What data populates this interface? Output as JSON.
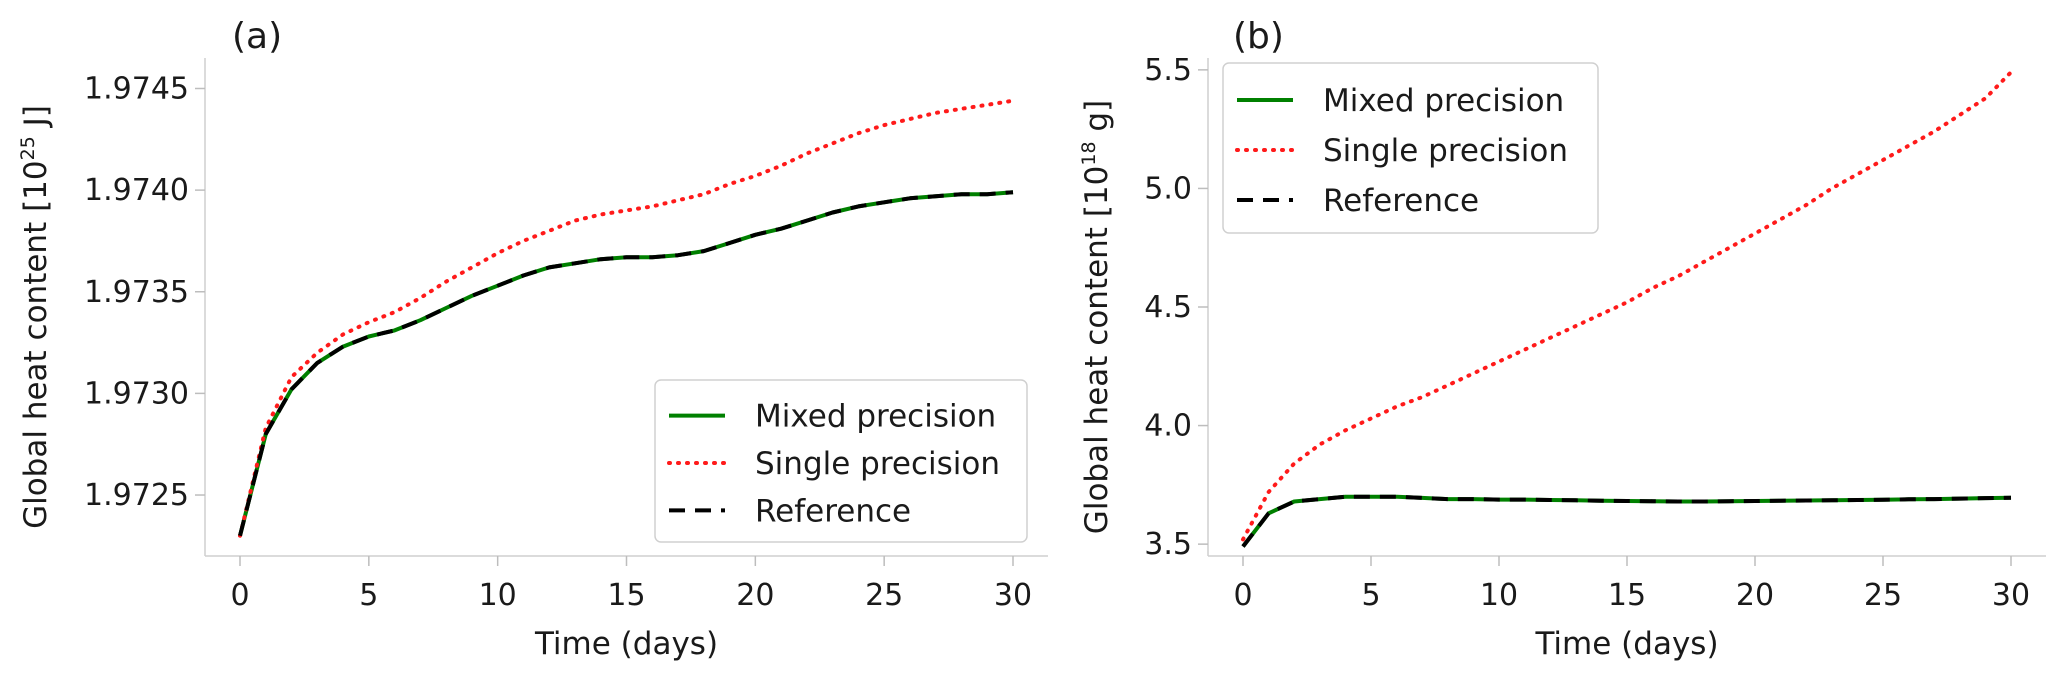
{
  "chart_data": [
    {
      "type": "line",
      "panel_label": "(a)",
      "xlabel": "Time (days)",
      "ylabel_prefix": "Global heat content [10",
      "ylabel_exp": "25",
      "ylabel_suffix": " J]",
      "xlim": [
        0,
        30
      ],
      "ylim": [
        1.9722,
        1.97465
      ],
      "xticks": [
        0,
        5,
        10,
        15,
        20,
        25,
        30
      ],
      "xtick_labels": [
        "0",
        "5",
        "10",
        "15",
        "20",
        "25",
        "30"
      ],
      "yticks": [
        1.9725,
        1.973,
        1.9735,
        1.974,
        1.9745
      ],
      "ytick_labels": [
        "1.9725",
        "1.9730",
        "1.9735",
        "1.9740",
        "1.9745"
      ],
      "legend_position": "lower-right",
      "x": [
        0,
        1,
        2,
        3,
        4,
        5,
        6,
        7,
        8,
        9,
        10,
        11,
        12,
        13,
        14,
        15,
        16,
        17,
        18,
        19,
        20,
        21,
        22,
        23,
        24,
        25,
        26,
        27,
        28,
        29,
        30
      ],
      "series": [
        {
          "name": "Mixed precision",
          "color": "#008000",
          "style": "solid",
          "values": [
            1.9723,
            1.9728,
            1.97302,
            1.97315,
            1.97323,
            1.97328,
            1.97331,
            1.97336,
            1.97342,
            1.97348,
            1.97353,
            1.97358,
            1.97362,
            1.97364,
            1.97366,
            1.97367,
            1.97367,
            1.97368,
            1.9737,
            1.97374,
            1.97378,
            1.97381,
            1.97385,
            1.97389,
            1.97392,
            1.97394,
            1.97396,
            1.97397,
            1.97398,
            1.97398,
            1.97399
          ]
        },
        {
          "name": "Single precision",
          "color": "#ff1a1a",
          "style": "dotted",
          "values": [
            1.9723,
            1.97283,
            1.97308,
            1.9732,
            1.97329,
            1.97335,
            1.9734,
            1.97347,
            1.97355,
            1.97362,
            1.97369,
            1.97375,
            1.9738,
            1.97385,
            1.97388,
            1.9739,
            1.97392,
            1.97395,
            1.97398,
            1.97403,
            1.97407,
            1.97412,
            1.97418,
            1.97423,
            1.97428,
            1.97432,
            1.97435,
            1.97438,
            1.9744,
            1.97442,
            1.97444
          ]
        },
        {
          "name": "Reference",
          "color": "#000000",
          "style": "dashed",
          "values": [
            1.9723,
            1.9728,
            1.97302,
            1.97315,
            1.97323,
            1.97328,
            1.97331,
            1.97336,
            1.97342,
            1.97348,
            1.97353,
            1.97358,
            1.97362,
            1.97364,
            1.97366,
            1.97367,
            1.97367,
            1.97368,
            1.9737,
            1.97374,
            1.97378,
            1.97381,
            1.97385,
            1.97389,
            1.97392,
            1.97394,
            1.97396,
            1.97397,
            1.97398,
            1.97398,
            1.97399
          ]
        }
      ]
    },
    {
      "type": "line",
      "panel_label": "(b)",
      "xlabel": "Time (days)",
      "ylabel_prefix": "Global heat content [10",
      "ylabel_exp": "18",
      "ylabel_suffix": " g]",
      "xlim": [
        0,
        30
      ],
      "ylim": [
        3.45,
        5.55
      ],
      "xticks": [
        0,
        5,
        10,
        15,
        20,
        25,
        30
      ],
      "xtick_labels": [
        "0",
        "5",
        "10",
        "15",
        "20",
        "25",
        "30"
      ],
      "yticks": [
        3.5,
        4.0,
        4.5,
        5.0,
        5.5
      ],
      "ytick_labels": [
        "3.5",
        "4.0",
        "4.5",
        "5.0",
        "5.5"
      ],
      "legend_position": "upper-left",
      "x": [
        0,
        1,
        2,
        3,
        4,
        5,
        6,
        7,
        8,
        9,
        10,
        11,
        12,
        13,
        14,
        15,
        16,
        17,
        18,
        19,
        20,
        21,
        22,
        23,
        24,
        25,
        26,
        27,
        28,
        29,
        30
      ],
      "series": [
        {
          "name": "Mixed precision",
          "color": "#008000",
          "style": "solid",
          "values": [
            3.49,
            3.63,
            3.68,
            3.69,
            3.7,
            3.7,
            3.7,
            3.695,
            3.69,
            3.69,
            3.688,
            3.688,
            3.686,
            3.685,
            3.683,
            3.682,
            3.681,
            3.68,
            3.68,
            3.681,
            3.682,
            3.683,
            3.684,
            3.685,
            3.686,
            3.687,
            3.689,
            3.69,
            3.692,
            3.694,
            3.696
          ]
        },
        {
          "name": "Single precision",
          "color": "#ff1a1a",
          "style": "dotted",
          "values": [
            3.52,
            3.72,
            3.84,
            3.92,
            3.98,
            4.03,
            4.08,
            4.12,
            4.17,
            4.22,
            4.27,
            4.32,
            4.37,
            4.42,
            4.47,
            4.52,
            4.58,
            4.63,
            4.69,
            4.75,
            4.81,
            4.87,
            4.93,
            5.0,
            5.06,
            5.12,
            5.18,
            5.24,
            5.31,
            5.38,
            5.49
          ]
        },
        {
          "name": "Reference",
          "color": "#000000",
          "style": "dashed",
          "values": [
            3.49,
            3.63,
            3.68,
            3.69,
            3.7,
            3.7,
            3.7,
            3.695,
            3.69,
            3.69,
            3.688,
            3.688,
            3.686,
            3.685,
            3.683,
            3.682,
            3.681,
            3.68,
            3.68,
            3.681,
            3.682,
            3.683,
            3.684,
            3.685,
            3.686,
            3.687,
            3.689,
            3.69,
            3.692,
            3.694,
            3.696
          ]
        }
      ]
    }
  ]
}
